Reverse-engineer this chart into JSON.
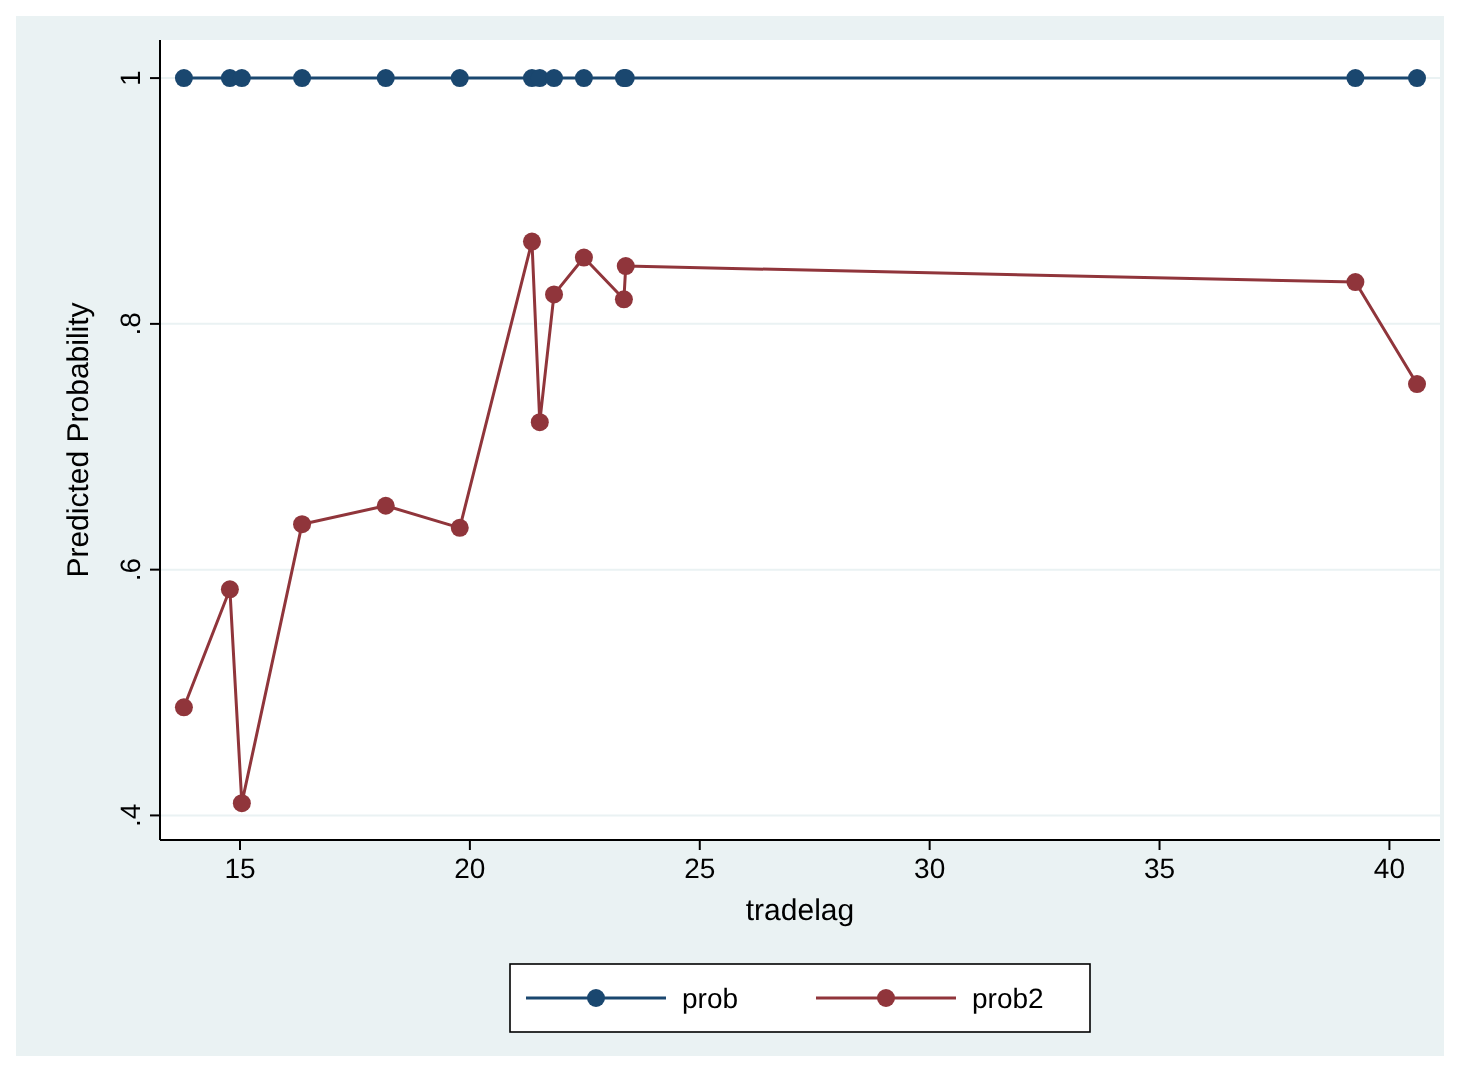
{
  "chart_data": {
    "type": "line",
    "xlabel": "tradelag",
    "ylabel": "Predicted Probability",
    "x": [
      13.78,
      14.78,
      15.04,
      16.35,
      18.17,
      19.78,
      21.35,
      21.52,
      21.83,
      22.48,
      23.35,
      23.39,
      39.26,
      40.6
    ],
    "series": [
      {
        "name": "prob",
        "color": "#1a476f",
        "values": [
          1,
          1,
          1,
          1,
          1,
          1,
          1,
          1,
          1,
          1,
          1,
          1,
          1,
          1
        ]
      },
      {
        "name": "prob2",
        "color": "#90353b",
        "values": [
          0.488,
          0.584,
          0.41,
          0.637,
          0.652,
          0.634,
          0.867,
          0.72,
          0.824,
          0.854,
          0.82,
          0.847,
          0.834,
          0.751
        ]
      }
    ],
    "xlim": [
      13.26,
      41.1
    ],
    "xticks": [
      15,
      20,
      25,
      30,
      35,
      40
    ],
    "ylim": [
      0.38,
      1.031
    ],
    "yticks": [
      {
        "value": 0.4,
        "label": ".4"
      },
      {
        "value": 0.6,
        "label": ".6"
      },
      {
        "value": 0.8,
        "label": ".8"
      },
      {
        "value": 1,
        "label": "1"
      }
    ],
    "grid": "y",
    "legend": "bottom",
    "marker": "circle",
    "line_style": "solid"
  }
}
